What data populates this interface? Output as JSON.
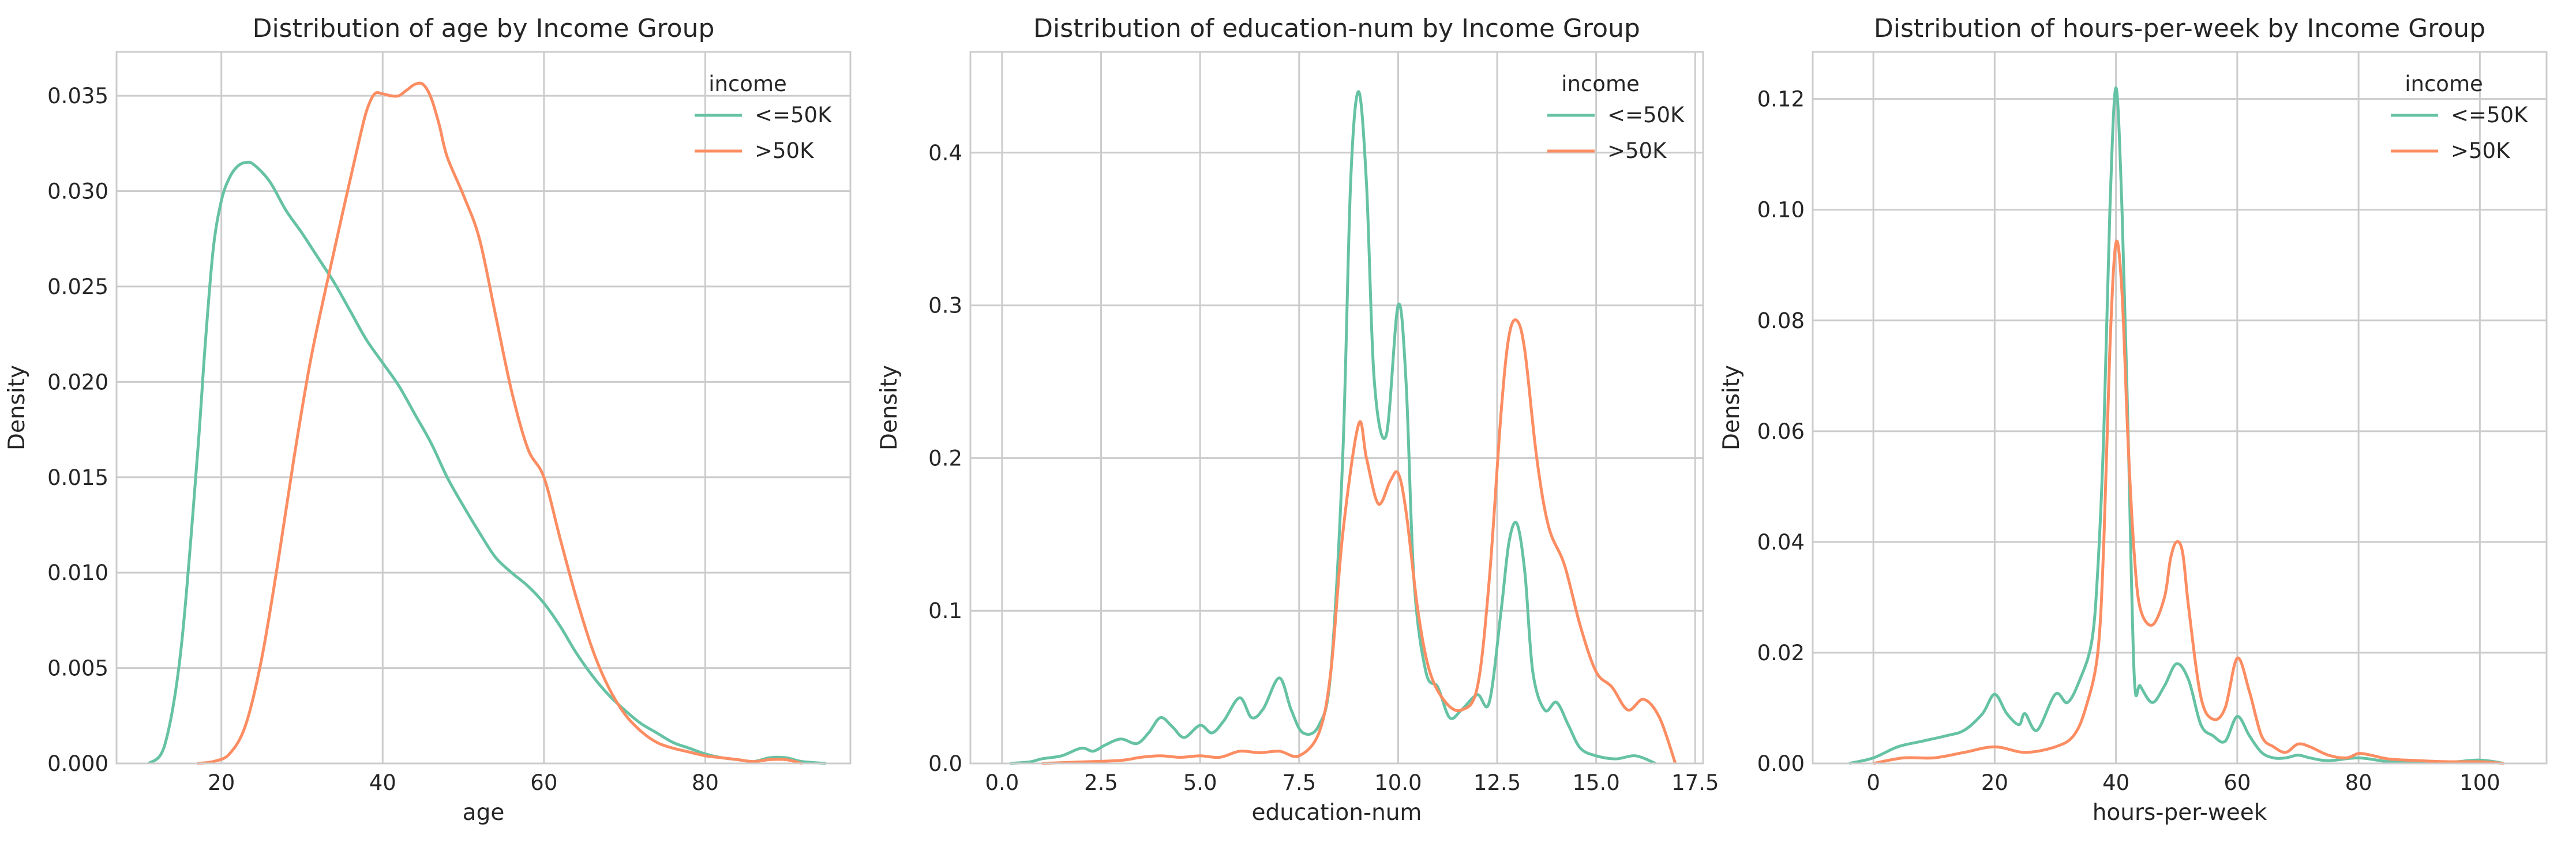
{
  "colors": {
    "le50k": "#66c2a5",
    "gt50k": "#fc8d62",
    "grid": "#cccccc",
    "text": "#262626"
  },
  "chart_data": [
    {
      "type": "line",
      "subtype": "kde",
      "title": "Distribution of age by Income Group",
      "xlabel": "age",
      "ylabel": "Density",
      "xlim": [
        7,
        98
      ],
      "ylim": [
        0,
        0.0373
      ],
      "xticks": [
        20,
        40,
        60,
        80
      ],
      "xtick_labels": [
        "20",
        "40",
        "60",
        "80"
      ],
      "yticks": [
        0,
        0.005,
        0.01,
        0.015,
        0.02,
        0.025,
        0.03,
        0.035
      ],
      "ytick_labels": [
        "0.000",
        "0.005",
        "0.010",
        "0.015",
        "0.020",
        "0.025",
        "0.030",
        "0.035"
      ],
      "legend": {
        "title": "income",
        "position": "top-right"
      },
      "series": [
        {
          "name": "<=50K",
          "color": "#66c2a5",
          "x": [
            11,
            13,
            15,
            17,
            18,
            19,
            20,
            21,
            22,
            23,
            24,
            26,
            28,
            30,
            32,
            34,
            36,
            38,
            40,
            42,
            44,
            46,
            48,
            50,
            52,
            54,
            56,
            58,
            60,
            62,
            64,
            66,
            68,
            70,
            72,
            74,
            76,
            78,
            80,
            82,
            84,
            86,
            88,
            90,
            92,
            95
          ],
          "y": [
            0.0,
            0.001,
            0.006,
            0.016,
            0.022,
            0.027,
            0.0295,
            0.0307,
            0.0313,
            0.0315,
            0.0314,
            0.0305,
            0.029,
            0.0278,
            0.0265,
            0.0252,
            0.0237,
            0.0222,
            0.021,
            0.0198,
            0.0183,
            0.0168,
            0.015,
            0.0135,
            0.0121,
            0.0108,
            0.01,
            0.0093,
            0.0084,
            0.0072,
            0.0058,
            0.0046,
            0.0036,
            0.0028,
            0.0021,
            0.0016,
            0.0011,
            0.0008,
            0.0005,
            0.0003,
            0.0002,
            0.0001,
            0.0003,
            0.0003,
            0.0001,
            0.0
          ]
        },
        {
          "name": ">50K",
          "color": "#fc8d62",
          "x": [
            17,
            19,
            21,
            23,
            25,
            27,
            29,
            31,
            33,
            35,
            37,
            38,
            39,
            40,
            41,
            42,
            43,
            44,
            45,
            46,
            47,
            48,
            50,
            52,
            54,
            56,
            58,
            60,
            62,
            64,
            66,
            68,
            70,
            72,
            74,
            76,
            78,
            80,
            82,
            84,
            86,
            88,
            90,
            92
          ],
          "y": [
            0.0,
            0.0001,
            0.0005,
            0.002,
            0.0055,
            0.0105,
            0.016,
            0.021,
            0.025,
            0.0288,
            0.0325,
            0.0342,
            0.0351,
            0.0351,
            0.035,
            0.035,
            0.0353,
            0.0356,
            0.0356,
            0.0349,
            0.0335,
            0.0318,
            0.0298,
            0.0275,
            0.0235,
            0.0195,
            0.0165,
            0.015,
            0.0118,
            0.0087,
            0.006,
            0.004,
            0.0026,
            0.0017,
            0.0011,
            0.0008,
            0.0006,
            0.0004,
            0.0003,
            0.0002,
            0.0001,
            0.0002,
            0.0002,
            0.0
          ]
        }
      ]
    },
    {
      "type": "line",
      "subtype": "kde",
      "title": "Distribution of education-num by Income Group",
      "xlabel": "education-num",
      "ylabel": "Density",
      "xlim": [
        -0.8,
        17.7
      ],
      "ylim": [
        0,
        0.466
      ],
      "xticks": [
        0,
        2.5,
        5,
        7.5,
        10,
        12.5,
        15,
        17.5
      ],
      "xtick_labels": [
        "0.0",
        "2.5",
        "5.0",
        "7.5",
        "10.0",
        "12.5",
        "15.0",
        "17.5"
      ],
      "yticks": [
        0,
        0.1,
        0.2,
        0.3,
        0.4
      ],
      "ytick_labels": [
        "0.0",
        "0.1",
        "0.2",
        "0.3",
        "0.4"
      ],
      "legend": {
        "title": "income",
        "position": "top-right"
      },
      "series": [
        {
          "name": "<=50K",
          "color": "#66c2a5",
          "x": [
            0.2,
            0.7,
            1.0,
            1.5,
            2.0,
            2.3,
            2.6,
            3.0,
            3.4,
            3.7,
            4.0,
            4.3,
            4.6,
            5.0,
            5.3,
            5.6,
            6.0,
            6.3,
            6.6,
            7.0,
            7.3,
            7.6,
            8.0,
            8.3,
            8.6,
            8.8,
            9.0,
            9.2,
            9.4,
            9.7,
            10.0,
            10.2,
            10.4,
            10.7,
            11.0,
            11.3,
            11.6,
            12.0,
            12.3,
            12.6,
            12.8,
            13.0,
            13.2,
            13.4,
            13.7,
            14.0,
            14.3,
            14.6,
            15.0,
            15.5,
            16.0,
            16.5
          ],
          "y": [
            0.0,
            0.001,
            0.003,
            0.005,
            0.01,
            0.008,
            0.012,
            0.016,
            0.013,
            0.02,
            0.03,
            0.024,
            0.017,
            0.025,
            0.02,
            0.028,
            0.043,
            0.03,
            0.036,
            0.056,
            0.035,
            0.02,
            0.025,
            0.06,
            0.2,
            0.38,
            0.44,
            0.38,
            0.25,
            0.215,
            0.3,
            0.25,
            0.12,
            0.06,
            0.05,
            0.03,
            0.035,
            0.045,
            0.04,
            0.1,
            0.145,
            0.157,
            0.125,
            0.06,
            0.035,
            0.04,
            0.025,
            0.01,
            0.005,
            0.003,
            0.005,
            0.0
          ]
        },
        {
          "name": ">50K",
          "color": "#fc8d62",
          "x": [
            1.0,
            2.0,
            3.0,
            3.5,
            4.0,
            4.5,
            5.0,
            5.5,
            6.0,
            6.5,
            7.0,
            7.5,
            8.0,
            8.3,
            8.6,
            9.0,
            9.2,
            9.5,
            9.8,
            10.0,
            10.2,
            10.5,
            10.8,
            11.2,
            11.6,
            12.0,
            12.3,
            12.6,
            12.8,
            13.0,
            13.2,
            13.5,
            13.8,
            14.2,
            14.6,
            15.0,
            15.4,
            15.8,
            16.2,
            16.6,
            17.0
          ],
          "y": [
            0.0,
            0.001,
            0.002,
            0.004,
            0.005,
            0.004,
            0.005,
            0.004,
            0.008,
            0.007,
            0.008,
            0.005,
            0.02,
            0.06,
            0.15,
            0.222,
            0.2,
            0.17,
            0.185,
            0.19,
            0.165,
            0.1,
            0.06,
            0.04,
            0.035,
            0.05,
            0.12,
            0.23,
            0.28,
            0.29,
            0.27,
            0.2,
            0.155,
            0.13,
            0.09,
            0.06,
            0.05,
            0.035,
            0.042,
            0.03,
            0.0
          ]
        }
      ]
    },
    {
      "type": "line",
      "subtype": "kde",
      "title": "Distribution of hours-per-week by Income Group",
      "xlabel": "hours-per-week",
      "ylabel": "Density",
      "xlim": [
        -10,
        111
      ],
      "ylim": [
        0,
        0.1285
      ],
      "xticks": [
        0,
        20,
        40,
        60,
        80,
        100
      ],
      "xtick_labels": [
        "0",
        "20",
        "40",
        "60",
        "80",
        "100"
      ],
      "yticks": [
        0,
        0.02,
        0.04,
        0.06,
        0.08,
        0.1,
        0.12
      ],
      "ytick_labels": [
        "0.00",
        "0.02",
        "0.04",
        "0.06",
        "0.08",
        "0.10",
        "0.12"
      ],
      "legend": {
        "title": "income",
        "position": "top-right"
      },
      "series": [
        {
          "name": "<=50K",
          "color": "#66c2a5",
          "x": [
            -4,
            0,
            4,
            8,
            12,
            15,
            18,
            20,
            22,
            24,
            25,
            27,
            30,
            32,
            34,
            36,
            37,
            38,
            39,
            40,
            41,
            42,
            43,
            44,
            46,
            48,
            50,
            52,
            54,
            56,
            58,
            60,
            62,
            64,
            66,
            68,
            70,
            72,
            75,
            80,
            85,
            90,
            95,
            100,
            104
          ],
          "y": [
            0.0,
            0.001,
            0.003,
            0.004,
            0.005,
            0.006,
            0.009,
            0.0125,
            0.009,
            0.007,
            0.009,
            0.006,
            0.0125,
            0.011,
            0.015,
            0.022,
            0.035,
            0.06,
            0.1,
            0.122,
            0.1,
            0.06,
            0.016,
            0.014,
            0.011,
            0.014,
            0.018,
            0.015,
            0.007,
            0.005,
            0.004,
            0.0085,
            0.005,
            0.002,
            0.001,
            0.001,
            0.0015,
            0.001,
            0.0005,
            0.001,
            0.0003,
            0.0002,
            0.0002,
            0.0006,
            0.0
          ]
        },
        {
          "name": ">50K",
          "color": "#fc8d62",
          "x": [
            0,
            5,
            10,
            15,
            20,
            25,
            30,
            33,
            35,
            37,
            38,
            39,
            40,
            41,
            42,
            43,
            44,
            46,
            48,
            49,
            50,
            51,
            52,
            54,
            56,
            58,
            60,
            62,
            64,
            66,
            68,
            70,
            72,
            75,
            78,
            80,
            82,
            85,
            90,
            95,
            100,
            104
          ],
          "y": [
            0.0,
            0.001,
            0.001,
            0.002,
            0.003,
            0.002,
            0.003,
            0.005,
            0.01,
            0.02,
            0.04,
            0.075,
            0.094,
            0.085,
            0.058,
            0.038,
            0.028,
            0.025,
            0.03,
            0.037,
            0.04,
            0.038,
            0.028,
            0.012,
            0.008,
            0.01,
            0.019,
            0.013,
            0.005,
            0.003,
            0.002,
            0.0035,
            0.003,
            0.0015,
            0.001,
            0.0018,
            0.0015,
            0.0008,
            0.0005,
            0.0003,
            0.0003,
            0.0
          ]
        }
      ]
    }
  ]
}
